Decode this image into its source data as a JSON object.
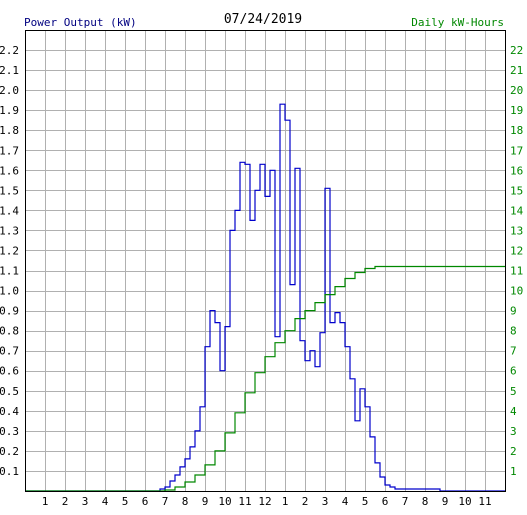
{
  "header": {
    "left_label": "Power Output (kW)",
    "date": "07/24/2019",
    "right_label": "Daily kW-Hours"
  },
  "colors": {
    "power": "#0000cc",
    "energy": "#008800",
    "grid": "#b0b0b0",
    "frame": "#000000",
    "left_text": "#000080",
    "right_text": "#008800"
  },
  "chart_data": {
    "type": "line",
    "title": "07/24/2019",
    "x_tick_labels": [
      "1",
      "2",
      "3",
      "4",
      "5",
      "6",
      "7",
      "8",
      "9",
      "10",
      "11",
      "12",
      "1",
      "2",
      "3",
      "4",
      "5",
      "6",
      "7",
      "8",
      "9",
      "10",
      "11"
    ],
    "x_range_hours": [
      0,
      24
    ],
    "y_left": {
      "label": "Power Output (kW)",
      "range": [
        0,
        2.3
      ],
      "ticks": [
        0.1,
        0.2,
        0.3,
        0.4,
        0.5,
        0.6,
        0.7,
        0.8,
        0.9,
        1.0,
        1.1,
        1.2,
        1.3,
        1.4,
        1.5,
        1.6,
        1.7,
        1.8,
        1.9,
        2.0,
        2.1,
        2.2
      ],
      "tick_labels": [
        "0.1",
        "0.2",
        "0.3",
        "0.4",
        "0.5",
        "0.6",
        "0.7",
        "0.8",
        "0.9",
        "1.0",
        "1.1",
        "1.2",
        "1.3",
        "1.4",
        "1.5",
        "1.6",
        "1.7",
        "1.8",
        "1.9",
        "2.0",
        "2.1",
        "2.2"
      ]
    },
    "y_right": {
      "label": "Daily kW-Hours",
      "range": [
        0,
        23
      ],
      "ticks": [
        1,
        2,
        3,
        4,
        5,
        6,
        7,
        8,
        9,
        10,
        11,
        12,
        13,
        14,
        15,
        16,
        17,
        18,
        19,
        20,
        21,
        22
      ],
      "tick_labels": [
        "1",
        "2",
        "3",
        "4",
        "5",
        "6",
        "7",
        "8",
        "9",
        "10",
        "11",
        "12",
        "13",
        "14",
        "15",
        "16",
        "17",
        "18",
        "19",
        "20",
        "21",
        "22"
      ]
    },
    "grid": true,
    "series": [
      {
        "name": "Power Output (kW)",
        "axis": "left",
        "style": "step",
        "x": [
          0,
          6.5,
          6.75,
          7.0,
          7.25,
          7.5,
          7.75,
          8.0,
          8.25,
          8.5,
          8.75,
          9.0,
          9.25,
          9.5,
          9.75,
          10.0,
          10.25,
          10.5,
          10.75,
          11.0,
          11.25,
          11.5,
          11.75,
          12.0,
          12.25,
          12.5,
          12.75,
          13.0,
          13.25,
          13.5,
          13.75,
          14.0,
          14.25,
          14.5,
          14.75,
          15.0,
          15.25,
          15.5,
          15.75,
          16.0,
          16.25,
          16.5,
          16.75,
          17.0,
          17.25,
          17.5,
          17.75,
          18.0,
          18.25,
          18.5,
          18.75,
          19.0,
          19.25,
          19.5,
          19.75,
          20.0,
          20.25,
          20.5,
          20.75,
          21.0,
          24.0
        ],
        "y": [
          0,
          0,
          0.01,
          0.02,
          0.05,
          0.08,
          0.12,
          0.16,
          0.22,
          0.3,
          0.42,
          0.72,
          0.9,
          0.84,
          0.6,
          0.82,
          1.3,
          1.4,
          1.64,
          1.63,
          1.35,
          1.5,
          1.63,
          1.47,
          1.6,
          0.77,
          1.93,
          1.85,
          1.03,
          1.61,
          0.75,
          0.65,
          0.7,
          0.62,
          0.79,
          1.51,
          0.84,
          0.89,
          0.84,
          0.72,
          0.56,
          0.35,
          0.51,
          0.42,
          0.27,
          0.14,
          0.07,
          0.03,
          0.02,
          0.01,
          0.01,
          0.01,
          0.01,
          0.01,
          0.01,
          0.01,
          0.01,
          0.01,
          0.0,
          0.0,
          0.0
        ]
      },
      {
        "name": "Daily kW-Hours",
        "axis": "right",
        "style": "step",
        "x": [
          0,
          6.5,
          7.0,
          7.5,
          8.0,
          8.5,
          9.0,
          9.5,
          10.0,
          10.5,
          11.0,
          11.5,
          12.0,
          12.5,
          13.0,
          13.5,
          14.0,
          14.5,
          15.0,
          15.5,
          16.0,
          16.5,
          17.0,
          17.5,
          18.0,
          18.5,
          19.0,
          19.5,
          20.0,
          20.5,
          21.0,
          21.5,
          22.0,
          24.0
        ],
        "y": [
          0,
          0,
          0.05,
          0.2,
          0.45,
          0.8,
          1.3,
          2.0,
          2.9,
          3.9,
          4.9,
          5.9,
          6.7,
          7.4,
          8.0,
          8.6,
          9.0,
          9.4,
          9.8,
          10.2,
          10.6,
          10.9,
          11.1,
          11.2,
          11.2,
          11.2,
          11.2,
          11.2,
          11.2,
          11.2,
          11.2,
          11.2,
          11.2,
          11.2
        ]
      }
    ]
  }
}
